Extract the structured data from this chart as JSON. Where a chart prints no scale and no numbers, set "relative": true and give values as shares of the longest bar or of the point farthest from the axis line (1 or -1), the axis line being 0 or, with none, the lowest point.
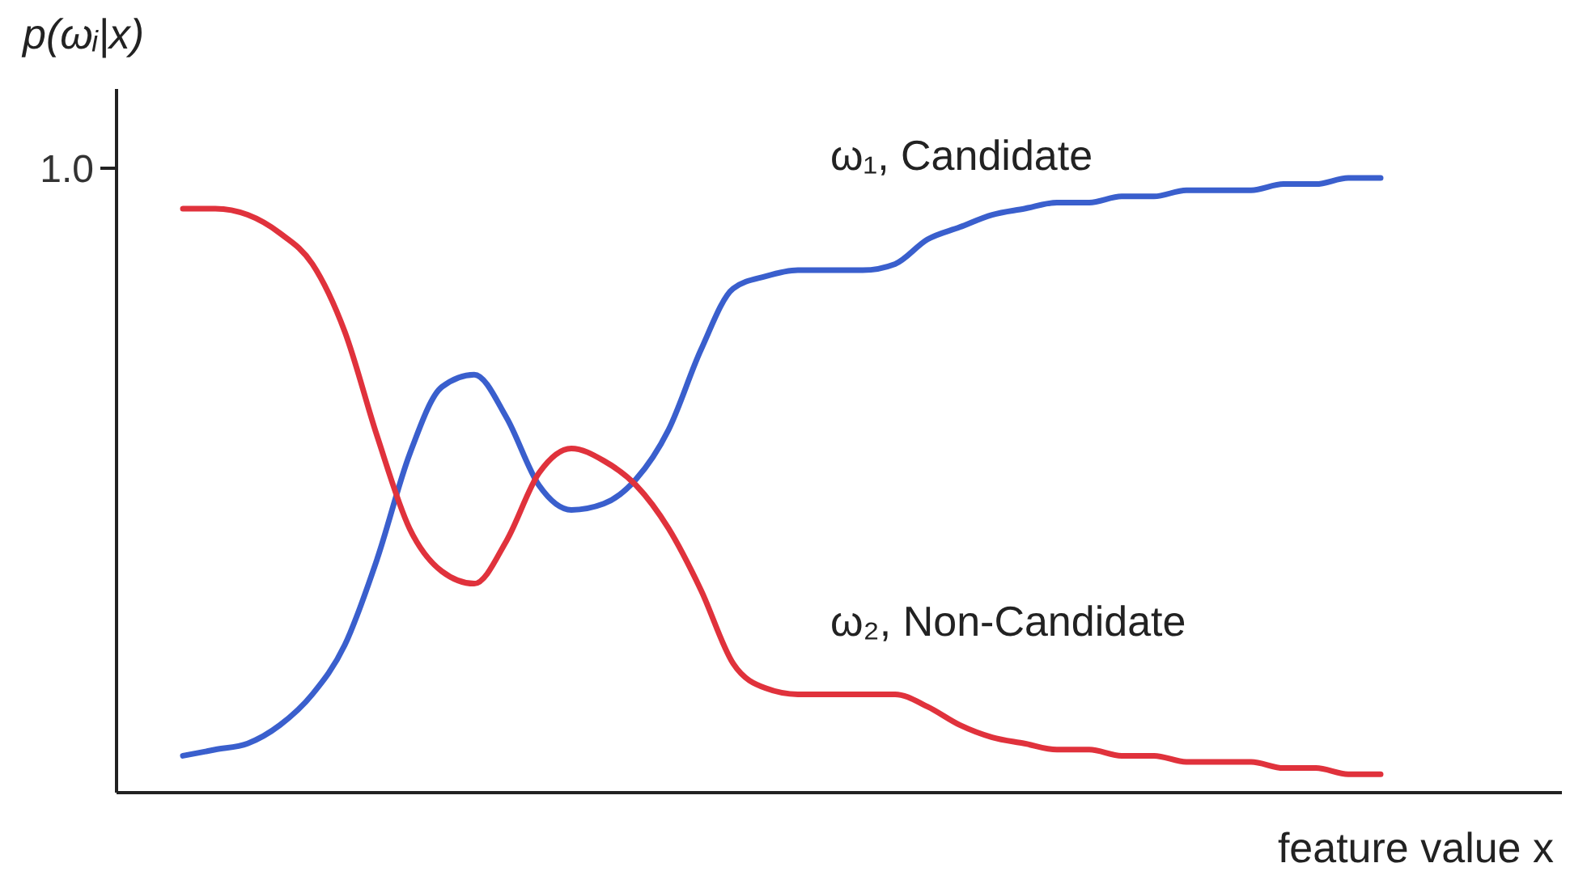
{
  "chart_data": {
    "type": "line",
    "relative": true,
    "ylabel": "p(ωᵢ|x)",
    "xlabel": "feature value x",
    "annotations": [
      "1.0"
    ],
    "categories": [
      null,
      null,
      null,
      null,
      null,
      null,
      null,
      null,
      null,
      null,
      null,
      null,
      null,
      null,
      null,
      null,
      null,
      null,
      null,
      null,
      null,
      null,
      null,
      null,
      null,
      null,
      null,
      null,
      null,
      null,
      null,
      null,
      null,
      null,
      null,
      null,
      null,
      null
    ],
    "series": [
      {
        "name": "ω₁, Candidate",
        "color": "#3a5fcd",
        "values": [
          0.06,
          0.07,
          0.08,
          0.11,
          0.16,
          0.24,
          0.38,
          0.55,
          0.66,
          0.68,
          0.61,
          0.5,
          0.46,
          0.47,
          0.51,
          0.59,
          0.72,
          0.82,
          0.84,
          0.85,
          0.85,
          0.85,
          0.86,
          0.9,
          0.92,
          0.94,
          0.95,
          0.96,
          0.96,
          0.97,
          0.97,
          0.98,
          0.98,
          0.98,
          0.99,
          0.99,
          1.0,
          1.0
        ]
      },
      {
        "name": "ω₂, Non-Candidate",
        "color": "#e0323c",
        "values": [
          0.95,
          0.95,
          0.94,
          0.91,
          0.86,
          0.75,
          0.58,
          0.43,
          0.36,
          0.34,
          0.41,
          0.52,
          0.56,
          0.54,
          0.5,
          0.43,
          0.33,
          0.21,
          0.17,
          0.16,
          0.16,
          0.16,
          0.16,
          0.14,
          0.11,
          0.09,
          0.08,
          0.07,
          0.07,
          0.06,
          0.06,
          0.05,
          0.05,
          0.05,
          0.04,
          0.04,
          0.03,
          0.03
        ]
      }
    ]
  }
}
